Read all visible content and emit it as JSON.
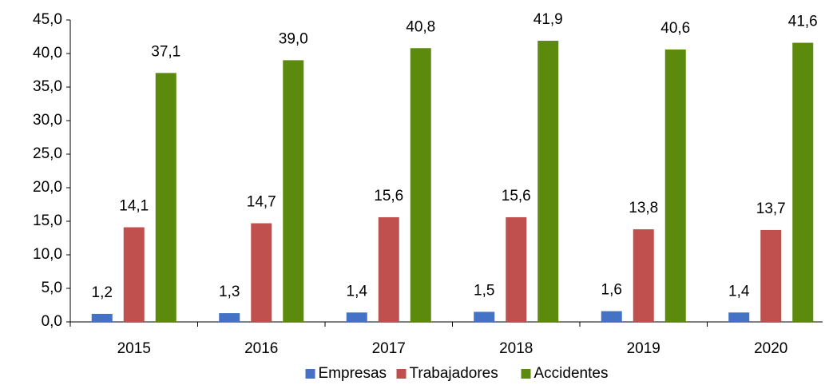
{
  "chart_data": {
    "type": "bar",
    "categories": [
      "2015",
      "2016",
      "2017",
      "2018",
      "2019",
      "2020"
    ],
    "series": [
      {
        "name": "Empresas",
        "color": "#4472c4",
        "values": [
          1.2,
          1.3,
          1.4,
          1.5,
          1.6,
          1.4
        ],
        "value_labels": [
          "1,2",
          "1,3",
          "1,4",
          "1,5",
          "1,6",
          "1,4"
        ]
      },
      {
        "name": "Trabajadores",
        "color": "#c0504d",
        "values": [
          14.1,
          14.7,
          15.6,
          15.6,
          13.8,
          13.7
        ],
        "value_labels": [
          "14,1",
          "14,7",
          "15,6",
          "15,6",
          "13,8",
          "13,7"
        ]
      },
      {
        "name": "Accidentes",
        "color": "#5b8a0c",
        "values": [
          37.1,
          39.0,
          40.8,
          41.9,
          40.6,
          41.6
        ],
        "value_labels": [
          "37,1",
          "39,0",
          "40,8",
          "41,9",
          "40,6",
          "41,6"
        ]
      }
    ],
    "ylim": [
      0,
      45
    ],
    "yticks": [
      {
        "value": 0,
        "label": "0,0"
      },
      {
        "value": 5,
        "label": "5,0"
      },
      {
        "value": 10,
        "label": "10,0"
      },
      {
        "value": 15,
        "label": "15,0"
      },
      {
        "value": 20,
        "label": "20,0"
      },
      {
        "value": 25,
        "label": "25,0"
      },
      {
        "value": 30,
        "label": "30,0"
      },
      {
        "value": 35,
        "label": "35,0"
      },
      {
        "value": 40,
        "label": "40,0"
      },
      {
        "value": 45,
        "label": "45,0"
      }
    ],
    "legend": "bottom"
  }
}
